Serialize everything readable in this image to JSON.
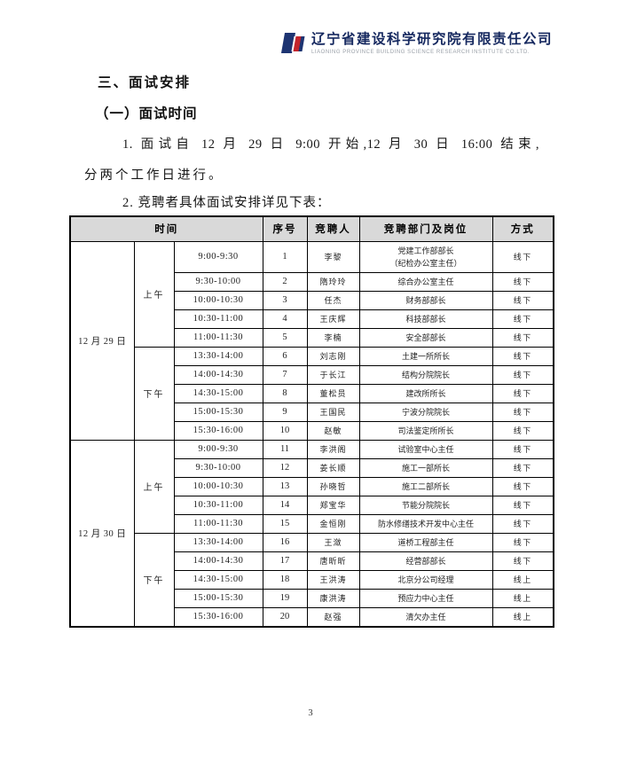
{
  "header": {
    "company_name_cn": "辽宁省建设科学研究院有限责任公司",
    "company_name_en": "LIAONING PROVINCE BUILDING SCIENCE RESEARCH INSTITUTE CO.LTD.",
    "logo_colors": {
      "navy": "#1d3472",
      "red": "#c3242c"
    }
  },
  "content": {
    "section_heading": "三、面试安排",
    "subsection_heading": "（一）面试时间",
    "paragraph1_line1": "1. 面试自 12 月 29 日 9:00 开始,12 月 30 日 16:00 结束,",
    "paragraph1_line2": "分两个工作日进行。",
    "paragraph2": "2. 竞聘者具体面试安排详见下表："
  },
  "table": {
    "headers": {
      "time": "时间",
      "no": "序号",
      "candidate": "竞聘人",
      "dept": "竞聘部门及岗位",
      "method": "方式"
    },
    "days": [
      {
        "date": "12 月 29 日",
        "sessions": [
          {
            "label": "上午",
            "rows": [
              {
                "time": "9:00-9:30",
                "no": "1",
                "candidate": "李黎",
                "dept": "党建工作部部长\n（纪检办公室主任）",
                "method": "线下"
              },
              {
                "time": "9:30-10:00",
                "no": "2",
                "candidate": "隋玲玲",
                "dept": "综合办公室主任",
                "method": "线下"
              },
              {
                "time": "10:00-10:30",
                "no": "3",
                "candidate": "任杰",
                "dept": "财务部部长",
                "method": "线下"
              },
              {
                "time": "10:30-11:00",
                "no": "4",
                "candidate": "王庆辉",
                "dept": "科技部部长",
                "method": "线下"
              },
              {
                "time": "11:00-11:30",
                "no": "5",
                "candidate": "李楠",
                "dept": "安全部部长",
                "method": "线下"
              }
            ]
          },
          {
            "label": "下午",
            "rows": [
              {
                "time": "13:30-14:00",
                "no": "6",
                "candidate": "刘志刚",
                "dept": "土建一所所长",
                "method": "线下"
              },
              {
                "time": "14:00-14:30",
                "no": "7",
                "candidate": "于长江",
                "dept": "结构分院院长",
                "method": "线下"
              },
              {
                "time": "14:30-15:00",
                "no": "8",
                "candidate": "董松员",
                "dept": "建改所所长",
                "method": "线下"
              },
              {
                "time": "15:00-15:30",
                "no": "9",
                "candidate": "王国民",
                "dept": "宁波分院院长",
                "method": "线下"
              },
              {
                "time": "15:30-16:00",
                "no": "10",
                "candidate": "赵敏",
                "dept": "司法鉴定所所长",
                "method": "线下"
              }
            ]
          }
        ]
      },
      {
        "date": "12 月 30 日",
        "sessions": [
          {
            "label": "上午",
            "rows": [
              {
                "time": "9:00-9:30",
                "no": "11",
                "candidate": "李洪阁",
                "dept": "试验室中心主任",
                "method": "线下"
              },
              {
                "time": "9:30-10:00",
                "no": "12",
                "candidate": "姜长顺",
                "dept": "施工一部所长",
                "method": "线下"
              },
              {
                "time": "10:00-10:30",
                "no": "13",
                "candidate": "孙晓哲",
                "dept": "施工二部所长",
                "method": "线下"
              },
              {
                "time": "10:30-11:00",
                "no": "14",
                "candidate": "郑宝华",
                "dept": "节能分院院长",
                "method": "线下"
              },
              {
                "time": "11:00-11:30",
                "no": "15",
                "candidate": "金恒刚",
                "dept": "防水修缮技术开发中心主任",
                "method": "线下"
              }
            ]
          },
          {
            "label": "下午",
            "rows": [
              {
                "time": "13:30-14:00",
                "no": "16",
                "candidate": "王潋",
                "dept": "道桥工程部主任",
                "method": "线下"
              },
              {
                "time": "14:00-14:30",
                "no": "17",
                "candidate": "唐昕昕",
                "dept": "经营部部长",
                "method": "线下"
              },
              {
                "time": "14:30-15:00",
                "no": "18",
                "candidate": "王洪涛",
                "dept": "北京分公司经理",
                "method": "线上"
              },
              {
                "time": "15:00-15:30",
                "no": "19",
                "candidate": "康洪涛",
                "dept": "预应力中心主任",
                "method": "线上"
              },
              {
                "time": "15:30-16:00",
                "no": "20",
                "candidate": "赵强",
                "dept": "清欠办主任",
                "method": "线上"
              }
            ]
          }
        ]
      }
    ]
  },
  "footer": {
    "page_number": "3"
  }
}
